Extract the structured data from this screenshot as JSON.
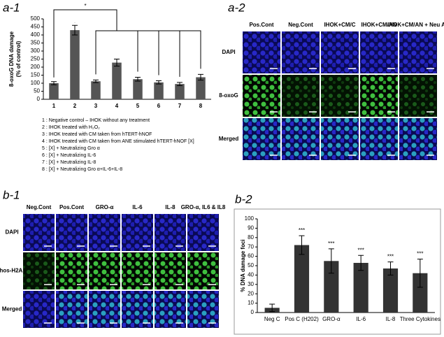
{
  "panels": {
    "a1": "a-1",
    "a2": "a-2",
    "b1": "b-1",
    "b2": "b-2"
  },
  "chart_data": [
    {
      "type": "bar",
      "ylabel": [
        "8-oxoG DNA damage",
        "(% of control)"
      ],
      "categories": [
        "1",
        "2",
        "3",
        "4",
        "5",
        "6",
        "7",
        "8"
      ],
      "values": [
        100,
        430,
        112,
        228,
        125,
        105,
        95,
        137
      ],
      "errors": [
        10,
        30,
        8,
        22,
        12,
        10,
        10,
        18
      ],
      "color": "#555555",
      "ylim": [
        0,
        500
      ],
      "yticks": [
        0,
        50,
        100,
        150,
        200,
        250,
        300,
        350,
        400,
        450,
        500
      ],
      "annotation": "*"
    },
    {
      "type": "bar",
      "ylabel": [
        "% DNA damage foci"
      ],
      "categories": [
        "Neg C",
        "Pos C (H202)",
        "GRO-α",
        "IL-6",
        "IL-8",
        "Three Cytokines"
      ],
      "values": [
        5,
        72,
        55,
        53,
        47,
        42
      ],
      "errors": [
        4,
        10,
        13,
        8,
        7,
        15
      ],
      "significance": [
        null,
        "***",
        "***",
        "***",
        "***",
        "***"
      ],
      "color": "#333333",
      "ylim": [
        0,
        100
      ],
      "yticks": [
        0,
        10,
        20,
        30,
        40,
        50,
        60,
        70,
        80,
        90,
        100
      ]
    }
  ],
  "a1_notes": [
    "1 : Negative control – IHOK without any treatment",
    "2 : IHOK treated with H₂O₂",
    "3 : IHOK treated with CM taken from hTERT-hNOF",
    "4 : IHOK treated with CM taken from ANE stimulated hTERT-hNOF [X]",
    "5 : [X] + Neutralizing Gro α",
    "6 : [X] + Neutralizing IL-6",
    "7 : [X] + Neutralizing IL-8",
    "8 : [X] + Neutralizing Gro α+IL-6+IL-8"
  ],
  "a2_grid": {
    "columns": [
      "Pos.Cont",
      "Neg.Cont",
      "IHOK+CM/C",
      "IHOK+CM/AN",
      "IHOK+CM/AN + Neu Ab"
    ],
    "rows": [
      "DAPI",
      "8-oxoG",
      "Merged"
    ]
  },
  "b1_grid": {
    "columns": [
      "Neg.Cont",
      "Pos.Cont",
      "GRO-α",
      "IL-6",
      "IL-8",
      "GRO-α, IL6 & IL8"
    ],
    "rows": [
      "DAPI",
      "Phos-H2A.X",
      "Merged"
    ]
  }
}
